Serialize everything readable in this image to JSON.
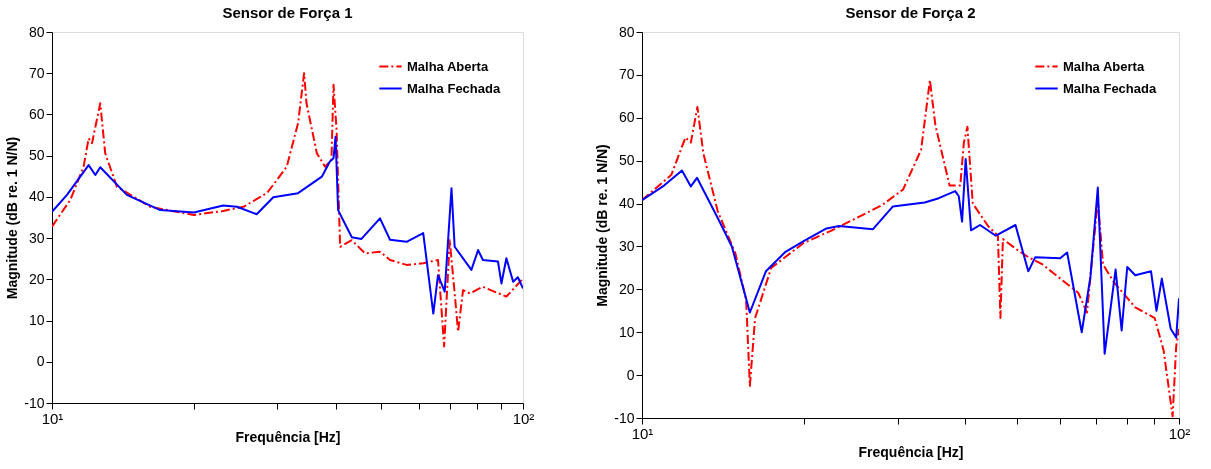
{
  "chart_data": [
    {
      "type": "line",
      "title": "Sensor de Força 1",
      "xlabel": "Frequência [Hz]",
      "ylabel": "Magnitude (dB re. 1 N/N)",
      "log": "x",
      "grid": false,
      "legend": "top right",
      "xlim": [
        10,
        100
      ],
      "ylim": [
        -10,
        80
      ],
      "xticks": [
        {
          "value": 10,
          "label": "10¹"
        },
        {
          "value": 20,
          "label": null
        },
        {
          "value": 30,
          "label": null
        },
        {
          "value": 40,
          "label": null
        },
        {
          "value": 50,
          "label": null
        },
        {
          "value": 60,
          "label": null
        },
        {
          "value": 70,
          "label": null
        },
        {
          "value": 80,
          "label": null
        },
        {
          "value": 90,
          "label": null
        },
        {
          "value": 100,
          "label": "10²"
        }
      ],
      "yticks": [
        -10,
        0,
        10,
        20,
        30,
        40,
        50,
        60,
        70,
        80
      ],
      "series": [
        {
          "name": "Malha Aberta",
          "color": "#ff0000",
          "line_style": "dashed",
          "x": [
            10,
            10.94,
            11.67,
            11.96,
            12.16,
            12.66,
            12.97,
            13.73,
            16.16,
            20,
            23.1,
            25.5,
            28.6,
            31.5,
            33.3,
            34.3,
            34.7,
            36.5,
            38.0,
            39.2,
            39.6,
            40.2,
            40.9,
            43.3,
            46.2,
            49.7,
            52.2,
            56.6,
            61.4,
            66.0,
            68.0,
            69.9,
            71.6,
            72.8,
            74.6,
            77.1,
            82.2,
            92.2,
            100
          ],
          "values": [
            32.8,
            39.3,
            47.3,
            54.2,
            53.0,
            62.7,
            50.6,
            42.5,
            37.6,
            35.6,
            36.6,
            37.6,
            40.9,
            47.3,
            57.9,
            70.0,
            62.7,
            50.6,
            47.3,
            49.0,
            67.2,
            56.2,
            27.9,
            29.5,
            26.3,
            26.7,
            24.7,
            23.5,
            23.9,
            24.7,
            3.7,
            29.5,
            16.6,
            7.3,
            17.4,
            16.6,
            18.2,
            15.8,
            20.2
          ]
        },
        {
          "name": "Malha Fechada",
          "color": "#0000ff",
          "line_style": "solid",
          "x": [
            10,
            10.76,
            11.96,
            12.36,
            12.66,
            14.42,
            16.97,
            20,
            23.1,
            24.7,
            27.2,
            29.5,
            33.3,
            37.4,
            38.9,
            39.6,
            40.0,
            40.5,
            43.3,
            45.4,
            49.7,
            52.2,
            56.6,
            61.4,
            64.5,
            66.0,
            68.2,
            70.5,
            71.6,
            77.7,
            80.3,
            82.2,
            88.5,
            90.0,
            92.2,
            95.3,
            97.5,
            100
          ],
          "values": [
            36.4,
            40.5,
            47.7,
            45.3,
            47.2,
            40.5,
            36.8,
            36.2,
            37.9,
            37.6,
            35.8,
            39.9,
            40.9,
            44.9,
            48.6,
            49.4,
            54.6,
            36.8,
            30.2,
            29.8,
            34.8,
            29.6,
            29.1,
            31.2,
            11.7,
            21.0,
            17.0,
            42.1,
            27.9,
            22.3,
            27.1,
            24.7,
            24.3,
            19.0,
            25.1,
            19.4,
            20.5,
            17.8
          ]
        }
      ]
    },
    {
      "type": "line",
      "title": "Sensor de Força 2",
      "xlabel": "Frequência [Hz]",
      "ylabel": "Magnitude (dB re. 1 N/N)",
      "log": "x",
      "grid": false,
      "legend": "top right",
      "xlim": [
        10,
        100
      ],
      "ylim": [
        -10,
        80
      ],
      "xticks": [
        {
          "value": 10,
          "label": "10¹"
        },
        {
          "value": 20,
          "label": null
        },
        {
          "value": 30,
          "label": null
        },
        {
          "value": 40,
          "label": null
        },
        {
          "value": 50,
          "label": null
        },
        {
          "value": 60,
          "label": null
        },
        {
          "value": 70,
          "label": null
        },
        {
          "value": 80,
          "label": null
        },
        {
          "value": 90,
          "label": null
        },
        {
          "value": 100,
          "label": "10²"
        }
      ],
      "yticks": [
        -10,
        0,
        10,
        20,
        30,
        40,
        50,
        60,
        70,
        80
      ],
      "series": [
        {
          "name": "Malha Aberta",
          "color": "#ff0000",
          "line_style": "dashed",
          "x": [
            10,
            11.34,
            12.05,
            12.33,
            12.68,
            13.01,
            13.83,
            14.93,
            15.63,
            15.88,
            16.24,
            17.4,
            20,
            22.57,
            27.96,
            30.64,
            33.09,
            34.37,
            35.18,
            37.39,
            39.15,
            39.75,
            40.36,
            41.3,
            44.2,
            46.0,
            46.5,
            47.0,
            50.0,
            52.4,
            55.7,
            60.1,
            64.9,
            67.4,
            70.6,
            72.2,
            75.6,
            82.9,
            90.1,
            93.6,
            97.3,
            98.8,
            100
          ],
          "values": [
            40.8,
            46.7,
            55.4,
            54.2,
            62.5,
            51.7,
            38.3,
            28.3,
            17.5,
            -2.5,
            13.3,
            25.0,
            30.8,
            33.75,
            39.6,
            43.3,
            52.5,
            68.75,
            58.3,
            44.2,
            44.2,
            54.2,
            57.9,
            40.0,
            34.6,
            32.5,
            13.3,
            31.7,
            29.2,
            27.5,
            25.8,
            22.5,
            19.2,
            14.6,
            40.8,
            25.8,
            21.7,
            15.8,
            13.3,
            5.8,
            -9.6,
            6.7,
            10.8
          ]
        },
        {
          "name": "Malha Fechada",
          "color": "#0000ff",
          "line_style": "solid",
          "x": [
            10,
            10.99,
            11.87,
            12.33,
            12.66,
            13.83,
            14.7,
            15.88,
            17.01,
            18.5,
            20,
            22.06,
            23.27,
            26.9,
            29.3,
            33.6,
            35.7,
            38.3,
            38.9,
            39.45,
            40.06,
            41.0,
            42.6,
            45.6,
            49.6,
            52.4,
            54.0,
            60.1,
            61.9,
            65.9,
            68.4,
            70.6,
            72.7,
            76.2,
            78.2,
            80.1,
            82.9,
            88.7,
            90.8,
            92.9,
            96.5,
            98.8,
            100
          ],
          "values": [
            40.8,
            44.2,
            47.7,
            44.0,
            46.0,
            36.7,
            30.0,
            14.6,
            24.2,
            28.75,
            31.25,
            34.2,
            34.75,
            34.0,
            39.3,
            40.25,
            41.25,
            42.9,
            41.7,
            35.8,
            50.4,
            33.75,
            35.0,
            32.5,
            35.0,
            24.2,
            27.5,
            27.25,
            28.6,
            10.0,
            22.9,
            43.75,
            5.0,
            24.6,
            10.4,
            25.2,
            23.3,
            24.2,
            15.0,
            22.5,
            10.8,
            8.75,
            17.9
          ]
        }
      ]
    }
  ]
}
